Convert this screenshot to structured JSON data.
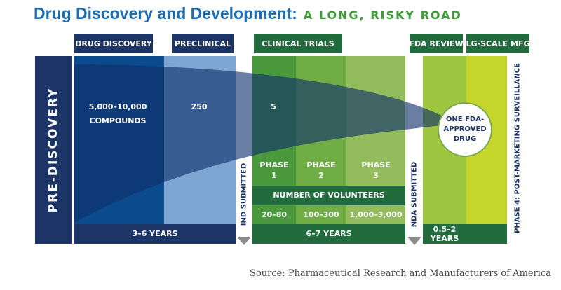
{
  "title": {
    "main": "Drug Discovery and Development:",
    "tagline": "A LONG, RISKY ROAD"
  },
  "stages": {
    "drug_discovery": "DRUG DISCOVERY",
    "preclinical": "PRECLINICAL",
    "clinical_trials": "CLINICAL TRIALS",
    "fda_review": "FDA REVIEW",
    "lg_scale_mfg": "LG-SCALE MFG"
  },
  "pre_discovery": "PRE-DISCOVERY",
  "compounds": {
    "count": "5,000–10,000",
    "unit": "COMPOUNDS",
    "preclinical_count": "250",
    "clinical_count": "5"
  },
  "outcome": {
    "line1": "ONE FDA-",
    "line2": "APPROVED",
    "line3": "DRUG"
  },
  "phases": [
    {
      "line1": "PHASE",
      "line2": "1",
      "volunteers": "20–80"
    },
    {
      "line1": "PHASE",
      "line2": "2",
      "volunteers": "100–300"
    },
    {
      "line1": "PHASE",
      "line2": "3",
      "volunteers": "1,000–3,000"
    }
  ],
  "volunteers_label": "NUMBER OF VOLUNTEERS",
  "milestones": {
    "ind": "IND SUBMITTED",
    "nda": "NDA SUBMITTED"
  },
  "durations": {
    "discovery": "3–6 YEARS",
    "clinical": "6–7 YEARS",
    "review_line1": "0.5–2",
    "review_line2": "YEARS"
  },
  "phase4": "PHASE 4: POST-MARKETING SURVEILLANCE",
  "source": "Source: Pharmaceutical Research and Manufacturers of America",
  "colors": {
    "navy": "#1d3566",
    "dark_blue": "#0b4a8c",
    "light_blue": "#7ea6d2",
    "green_dark": "#216b3d",
    "green1": "#4a9a3d",
    "green2": "#71ad45",
    "green3": "#93bd5c",
    "lime1": "#9ec640",
    "lime2": "#c5d52c",
    "title_blue": "#1e6db0",
    "title_green": "#3f9a3a"
  }
}
